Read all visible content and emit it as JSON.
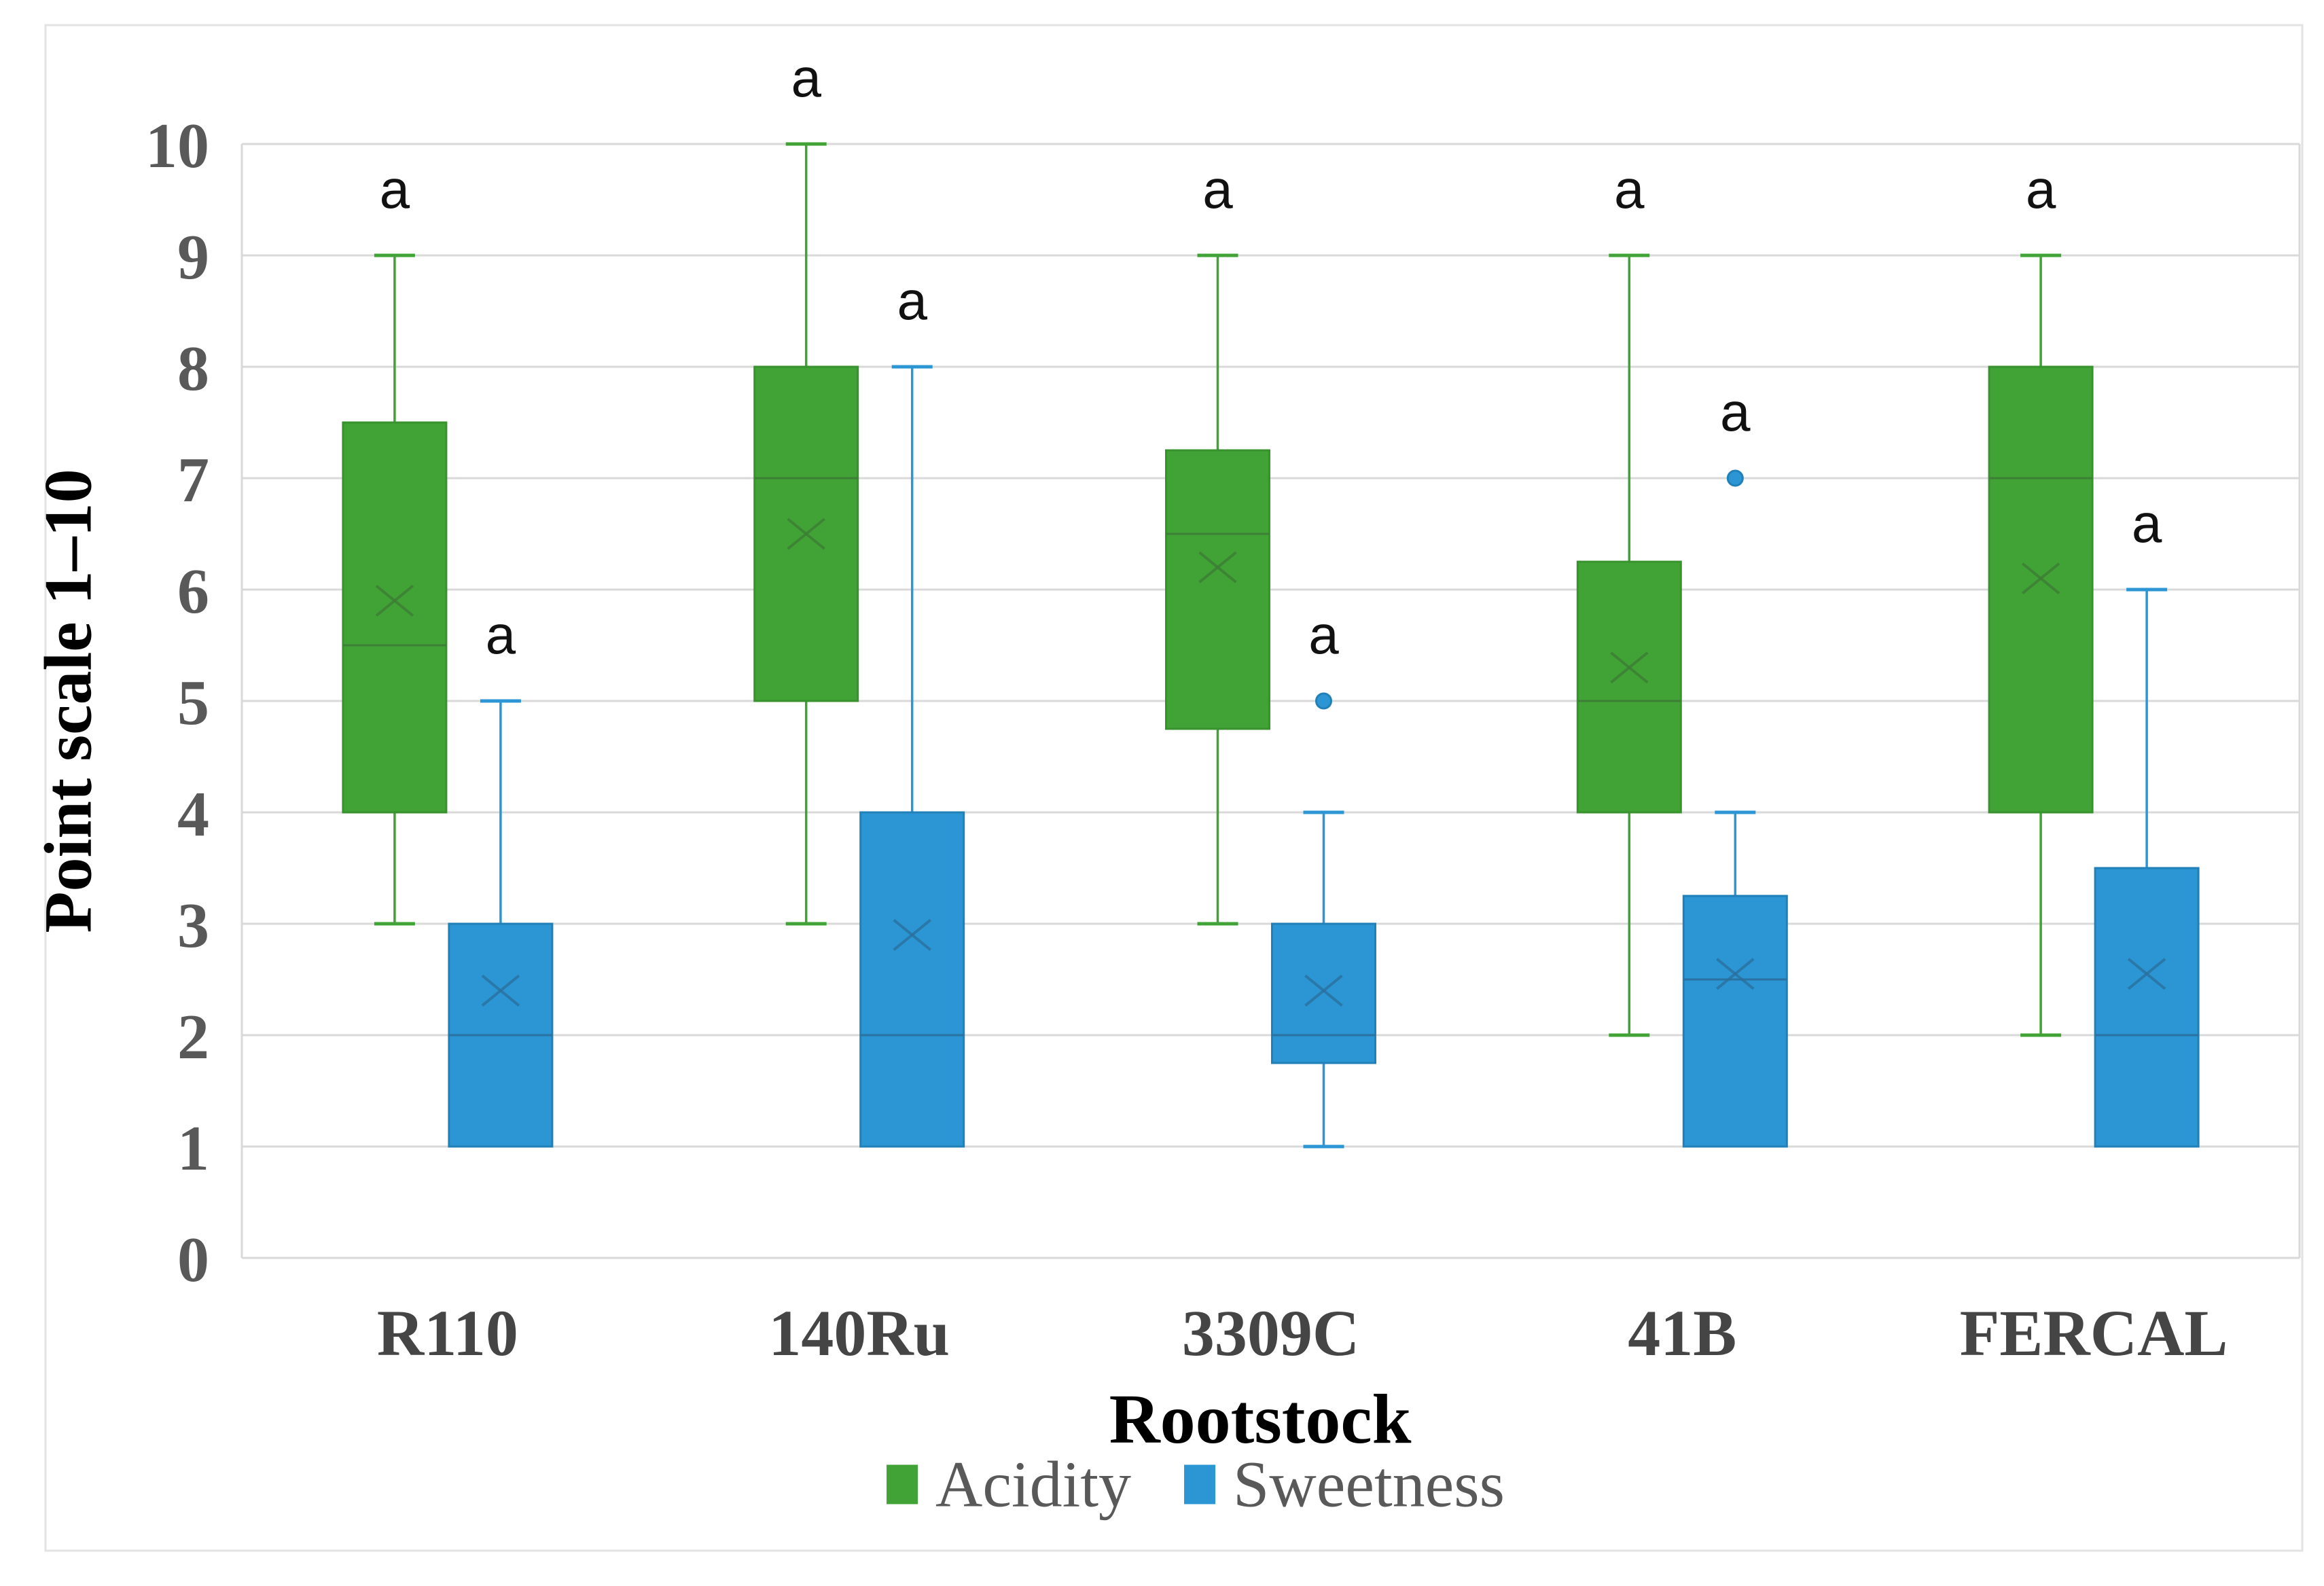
{
  "figure": {
    "ylabel": "Point scale 1–10",
    "xlabel": "Rootstock"
  },
  "chart_data": {
    "type": "boxplot",
    "title": "",
    "xlabel": "Rootstock",
    "ylabel": "Point scale 1–10",
    "ylim": [
      0,
      10
    ],
    "yticks": [
      0,
      1,
      2,
      3,
      4,
      5,
      6,
      7,
      8,
      9,
      10
    ],
    "grid": true,
    "legend_position": "bottom",
    "categories": [
      "R110",
      "140Ru",
      "3309C",
      "41B",
      "FERCAL"
    ],
    "series": [
      {
        "name": "Acidity",
        "color": "#41A336",
        "border_color": "#38922E",
        "detail_color": "#3C7C35",
        "boxes": [
          {
            "category": "R110",
            "low": 3,
            "q1": 4,
            "median": 5.5,
            "q3": 7.5,
            "high": 9,
            "mean": 5.9,
            "outliers": [],
            "sig_label": "a"
          },
          {
            "category": "140Ru",
            "low": 3,
            "q1": 5,
            "median": 7,
            "q3": 8,
            "high": 10,
            "mean": 6.5,
            "outliers": [],
            "sig_label": "a"
          },
          {
            "category": "3309C",
            "low": 3,
            "q1": 4.75,
            "median": 6.5,
            "q3": 7.25,
            "high": 9,
            "mean": 6.2,
            "outliers": [],
            "sig_label": "a"
          },
          {
            "category": "41B",
            "low": 2,
            "q1": 4,
            "median": 5,
            "q3": 6.25,
            "high": 9,
            "mean": 5.3,
            "outliers": [],
            "sig_label": "a"
          },
          {
            "category": "FERCAL",
            "low": 2,
            "q1": 4,
            "median": 7,
            "q3": 8,
            "high": 9,
            "mean": 6.1,
            "outliers": [],
            "sig_label": "a"
          }
        ]
      },
      {
        "name": "Sweetness",
        "color": "#2B96D3",
        "border_color": "#2080B7",
        "detail_color": "#2A6F9C",
        "boxes": [
          {
            "category": "R110",
            "low": 1,
            "q1": 1,
            "median": 2,
            "q3": 3,
            "high": 5,
            "mean": 2.4,
            "outliers": [],
            "sig_label": "a"
          },
          {
            "category": "140Ru",
            "low": 1,
            "q1": 1,
            "median": 2,
            "q3": 4,
            "high": 8,
            "mean": 2.9,
            "outliers": [],
            "sig_label": "a"
          },
          {
            "category": "3309C",
            "low": 1,
            "q1": 1.75,
            "median": 2,
            "q3": 3,
            "high": 4,
            "mean": 2.4,
            "outliers": [
              5
            ],
            "sig_label": "a"
          },
          {
            "category": "41B",
            "low": 1,
            "q1": 1,
            "median": 2.5,
            "q3": 3.25,
            "high": 4,
            "mean": 2.55,
            "outliers": [
              7
            ],
            "sig_label": "a"
          },
          {
            "category": "FERCAL",
            "low": 1,
            "q1": 1,
            "median": 2,
            "q3": 3.5,
            "high": 6,
            "mean": 2.55,
            "outliers": [],
            "sig_label": "a"
          }
        ]
      }
    ],
    "colors": {
      "gridline": "#D9D9D9",
      "frame": "#E2E2E2",
      "tick_text": "#595959",
      "category_text": "#454545",
      "title_text": "#000000",
      "legend_text": "#595959",
      "sig_text": "#111111"
    }
  }
}
